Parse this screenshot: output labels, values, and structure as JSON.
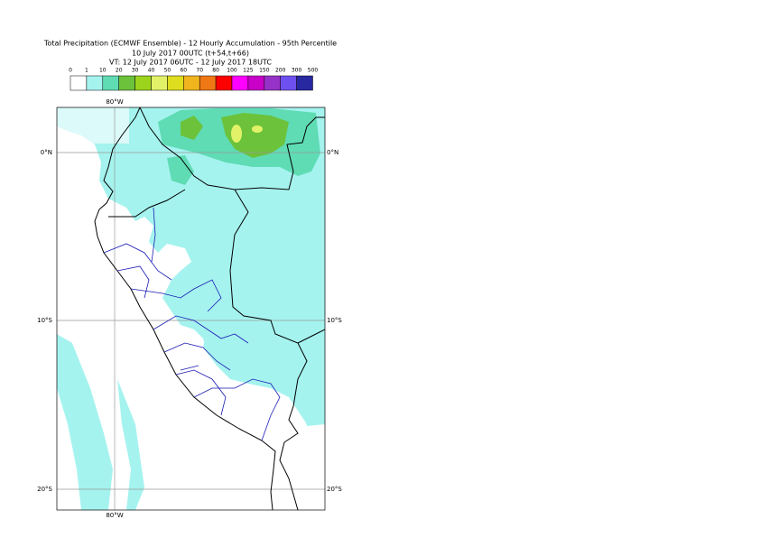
{
  "title": {
    "lines": [
      "Total Precipitation (ECMWF Ensemble) - 12 Hourly Accumulation - 95th Percentile",
      "10 July 2017 00UTC (t+54,t+66)",
      "VT: 12 July 2017 06UTC - 12 July 2017 18UTC"
    ]
  },
  "legend": {
    "labels": [
      "0",
      "1",
      "10",
      "20",
      "30",
      "40",
      "50",
      "60",
      "70",
      "80",
      "100",
      "125",
      "150",
      "200",
      "300",
      "500"
    ],
    "colors": [
      "#ffffff",
      "#a5f3ef",
      "#5fdcb4",
      "#6cc23a",
      "#9cd31c",
      "#e2f268",
      "#dede1e",
      "#f0b41e",
      "#f07814",
      "#ff0000",
      "#ff00ff",
      "#c800c8",
      "#9632c8",
      "#6e50f0",
      "#2828a0",
      "#14145a"
    ]
  },
  "map": {
    "lon_labels": [
      "80°W"
    ],
    "lat_labels": [
      "0°N",
      "10°S",
      "20°S"
    ]
  }
}
